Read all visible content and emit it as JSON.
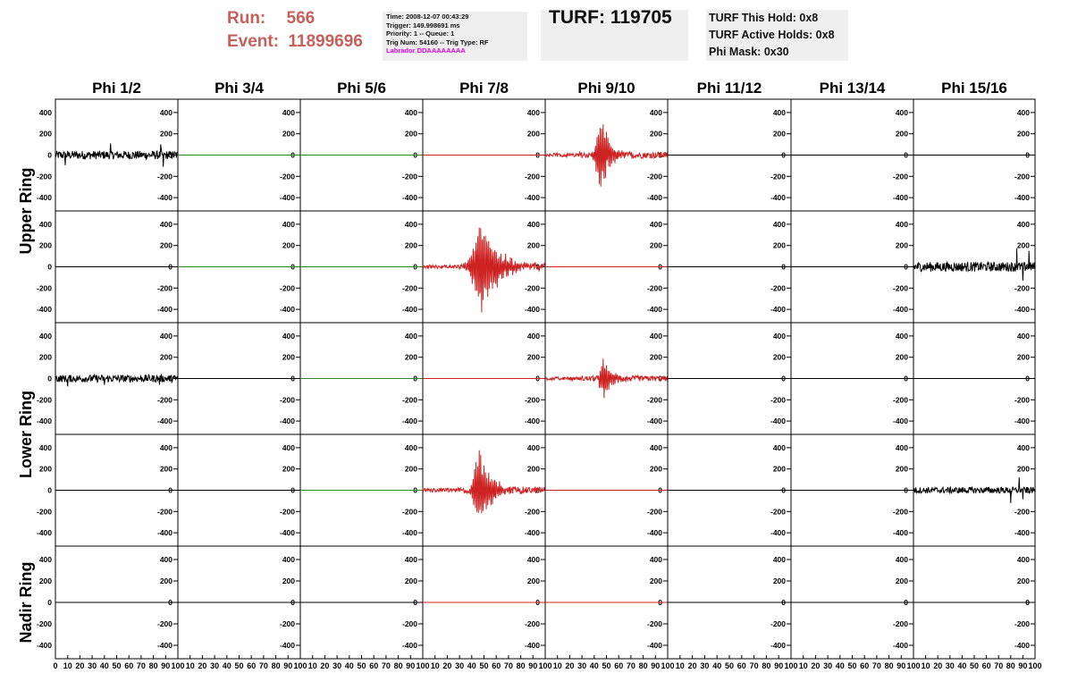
{
  "header": {
    "run_label": "Run:",
    "run_value": "566",
    "event_label": "Event:",
    "event_value": "11899696",
    "info_lines": [
      "Time: 2008-12-07 00:43:29",
      "Trigger: 149.998691 ms",
      "Priority: 1 -- Queue: 1",
      "Trig Num: 54160 -- Trig Type: RF"
    ],
    "labrador": "Labrador DDAAAAAAAA",
    "turf": "TURF: 119705",
    "hold_lines": [
      "TURF This Hold: 0x8",
      "TURF Active Holds: 0x8",
      "Phi Mask: 0x30"
    ]
  },
  "colors": {
    "header_red": "#c8605a",
    "info_bg": "#efefef",
    "labrador_magenta": "#e000e0",
    "trace_black": "#000000",
    "trace_red": "#cc2222",
    "trace_green": "#2a8a2a"
  },
  "chart_data": {
    "type": "line",
    "title": "",
    "column_labels": [
      "Phi 1/2",
      "Phi 3/4",
      "Phi 5/6",
      "Phi 7/8",
      "Phi 9/10",
      "Phi 11/12",
      "Phi 13/14",
      "Phi 15/16"
    ],
    "row_labels": [
      "Upper Ring",
      "Lower Ring",
      "Nadir Ring"
    ],
    "xlim": [
      0,
      100
    ],
    "ylim": [
      -500,
      500
    ],
    "x_ticks": [
      0,
      10,
      20,
      30,
      40,
      50,
      60,
      70,
      80,
      90,
      100
    ],
    "x_tick_labels_first": [
      "0",
      "10",
      "20",
      "30",
      "40",
      "50",
      "60",
      "70",
      "80",
      "90",
      "100"
    ],
    "x_tick_labels_other": [
      "10",
      "20",
      "30",
      "40",
      "50",
      "60",
      "70",
      "80",
      "90",
      "100"
    ],
    "y_ticks": [
      400,
      200,
      0,
      -200,
      -400
    ],
    "y_tick_labels": [
      "400",
      "200",
      "0",
      "-200",
      "-400"
    ],
    "note_panels": "5 rows x 8 columns of waveform panels; rows 0-1 Upper Ring, rows 2-3 Lower Ring, row 4 Nadir Ring",
    "traces": [
      {
        "row": 0,
        "col": 0,
        "color": "black",
        "type": "noise",
        "amp": 40,
        "spikes": [
          [
            0.08,
            -95
          ],
          [
            0.45,
            110
          ],
          [
            0.88,
            -110
          ],
          [
            0.86,
            100
          ]
        ]
      },
      {
        "row": 0,
        "col": 1,
        "color": "green",
        "type": "flat"
      },
      {
        "row": 0,
        "col": 2,
        "color": "green",
        "type": "flat"
      },
      {
        "row": 0,
        "col": 3,
        "color": "red",
        "type": "flat"
      },
      {
        "row": 0,
        "col": 4,
        "color": "red",
        "type": "pulse",
        "amp": 30,
        "peak": 460,
        "center": 0.45,
        "width": 0.1
      },
      {
        "row": 0,
        "col": 5,
        "color": "black",
        "type": "flat"
      },
      {
        "row": 0,
        "col": 6,
        "color": "black",
        "type": "flat"
      },
      {
        "row": 0,
        "col": 7,
        "color": "black",
        "type": "flat"
      },
      {
        "row": 1,
        "col": 0,
        "color": "black",
        "type": "flat"
      },
      {
        "row": 1,
        "col": 1,
        "color": "green",
        "type": "flat"
      },
      {
        "row": 1,
        "col": 2,
        "color": "green",
        "type": "flat"
      },
      {
        "row": 1,
        "col": 3,
        "color": "red",
        "type": "pulse",
        "amp": 30,
        "peak": 520,
        "center": 0.48,
        "width": 0.2
      },
      {
        "row": 1,
        "col": 4,
        "color": "red",
        "type": "flat"
      },
      {
        "row": 1,
        "col": 5,
        "color": "black",
        "type": "flat"
      },
      {
        "row": 1,
        "col": 6,
        "color": "black",
        "type": "flat"
      },
      {
        "row": 1,
        "col": 7,
        "color": "black",
        "type": "noise",
        "amp": 45,
        "spikes": [
          [
            0.85,
            175
          ],
          [
            0.9,
            -130
          ],
          [
            0.95,
            150
          ]
        ]
      },
      {
        "row": 2,
        "col": 0,
        "color": "black",
        "type": "noise",
        "amp": 35,
        "spikes": [
          [
            0.1,
            -75
          ],
          [
            0.4,
            -60
          ],
          [
            0.85,
            -60
          ]
        ]
      },
      {
        "row": 2,
        "col": 1,
        "color": "black",
        "type": "flat"
      },
      {
        "row": 2,
        "col": 2,
        "color": "green",
        "type": "flat"
      },
      {
        "row": 2,
        "col": 3,
        "color": "red",
        "type": "flat"
      },
      {
        "row": 2,
        "col": 4,
        "color": "red",
        "type": "pulse",
        "amp": 25,
        "peak": 220,
        "center": 0.48,
        "width": 0.1
      },
      {
        "row": 2,
        "col": 5,
        "color": "black",
        "type": "flat"
      },
      {
        "row": 2,
        "col": 6,
        "color": "black",
        "type": "flat"
      },
      {
        "row": 2,
        "col": 7,
        "color": "black",
        "type": "flat"
      },
      {
        "row": 3,
        "col": 0,
        "color": "black",
        "type": "flat"
      },
      {
        "row": 3,
        "col": 1,
        "color": "black",
        "type": "flat"
      },
      {
        "row": 3,
        "col": 2,
        "color": "green",
        "type": "flat"
      },
      {
        "row": 3,
        "col": 3,
        "color": "red",
        "type": "pulse",
        "amp": 30,
        "peak": 430,
        "center": 0.46,
        "width": 0.14
      },
      {
        "row": 3,
        "col": 4,
        "color": "red",
        "type": "flat"
      },
      {
        "row": 3,
        "col": 5,
        "color": "black",
        "type": "flat"
      },
      {
        "row": 3,
        "col": 6,
        "color": "black",
        "type": "flat"
      },
      {
        "row": 3,
        "col": 7,
        "color": "black",
        "type": "noise",
        "amp": 30,
        "spikes": [
          [
            0.8,
            -120
          ],
          [
            0.87,
            120
          ],
          [
            0.9,
            -85
          ]
        ]
      },
      {
        "row": 4,
        "col": 0,
        "color": "black",
        "type": "flat"
      },
      {
        "row": 4,
        "col": 1,
        "color": "black",
        "type": "flat"
      },
      {
        "row": 4,
        "col": 2,
        "color": "black",
        "type": "flat"
      },
      {
        "row": 4,
        "col": 3,
        "color": "red",
        "type": "flat"
      },
      {
        "row": 4,
        "col": 4,
        "color": "red",
        "type": "flat"
      },
      {
        "row": 4,
        "col": 5,
        "color": "black",
        "type": "flat"
      },
      {
        "row": 4,
        "col": 6,
        "color": "black",
        "type": "flat"
      },
      {
        "row": 4,
        "col": 7,
        "color": "black",
        "type": "flat"
      }
    ]
  }
}
